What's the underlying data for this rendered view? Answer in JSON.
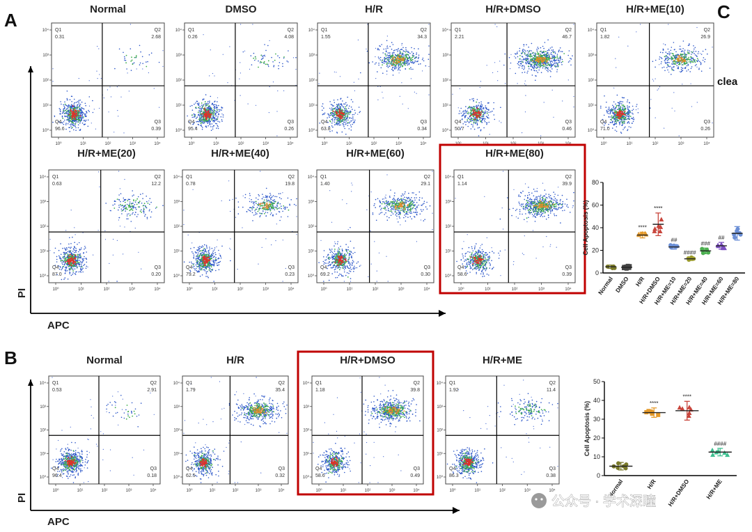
{
  "figure": {
    "panel_labels": [
      "A",
      "B",
      "C"
    ],
    "side_text": "clea",
    "axis_y_label": "PI",
    "axis_x_label": "APC",
    "watermark": "公众号 · 学术深瞳",
    "quadrant_labels": [
      "Q1",
      "Q2",
      "Q3",
      "Q4"
    ],
    "tick_labels": [
      "10⁰",
      "10¹",
      "10²",
      "10³",
      "10⁴"
    ],
    "colors": {
      "highlight_box": "#c00000",
      "gridline": "#000000",
      "dots": "#1f3fbf",
      "density_core": "#e0302a"
    }
  },
  "chart_data": [
    {
      "type": "scatter",
      "panel": "A",
      "title": "Normal",
      "quadrants": {
        "Q1": "0.31",
        "Q2": "2.68",
        "Q3": "0.39",
        "Q4": "96.6"
      },
      "highlighted": false
    },
    {
      "type": "scatter",
      "panel": "A",
      "title": "DMSO",
      "quadrants": {
        "Q1": "0.26",
        "Q2": "4.08",
        "Q3": "0.26",
        "Q4": "95.4"
      },
      "highlighted": false
    },
    {
      "type": "scatter",
      "panel": "A",
      "title": "H/R",
      "quadrants": {
        "Q1": "1.55",
        "Q2": "34.3",
        "Q3": "0.34",
        "Q4": "63.8"
      },
      "highlighted": false
    },
    {
      "type": "scatter",
      "panel": "A",
      "title": "H/R+DMSO",
      "quadrants": {
        "Q1": "2.21",
        "Q2": "46.7",
        "Q3": "0.46",
        "Q4": "50.7"
      },
      "highlighted": false
    },
    {
      "type": "scatter",
      "panel": "A",
      "title": "H/R+ME(10)",
      "quadrants": {
        "Q1": "1.82",
        "Q2": "26.9",
        "Q3": "0.26",
        "Q4": "71.0"
      },
      "highlighted": false
    },
    {
      "type": "scatter",
      "panel": "A",
      "title": "H/R+ME(20)",
      "quadrants": {
        "Q1": "0.63",
        "Q2": "12.2",
        "Q3": "0.20",
        "Q4": "87.0"
      },
      "highlighted": false
    },
    {
      "type": "scatter",
      "panel": "A",
      "title": "H/R+ME(40)",
      "quadrants": {
        "Q1": "0.78",
        "Q2": "19.8",
        "Q3": "0.23",
        "Q4": "79.2"
      },
      "highlighted": false
    },
    {
      "type": "scatter",
      "panel": "A",
      "title": "H/R+ME(60)",
      "quadrants": {
        "Q1": "1.40",
        "Q2": "29.1",
        "Q3": "0.30",
        "Q4": "69.2"
      },
      "highlighted": false
    },
    {
      "type": "scatter",
      "panel": "A",
      "title": "H/R+ME(80)",
      "quadrants": {
        "Q1": "1.14",
        "Q2": "39.9",
        "Q3": "0.39",
        "Q4": "58.6"
      },
      "highlighted": true
    },
    {
      "type": "scatter",
      "panel": "B",
      "title": "Normal",
      "quadrants": {
        "Q1": "0.53",
        "Q2": "2.91",
        "Q3": "0.18",
        "Q4": "96.4"
      },
      "highlighted": false
    },
    {
      "type": "scatter",
      "panel": "B",
      "title": "H/R",
      "quadrants": {
        "Q1": "1.79",
        "Q2": "35.4",
        "Q3": "0.32",
        "Q4": "62.5"
      },
      "highlighted": false
    },
    {
      "type": "scatter",
      "panel": "B",
      "title": "H/R+DMSO",
      "quadrants": {
        "Q1": "1.18",
        "Q2": "39.8",
        "Q3": "0.49",
        "Q4": "58.6"
      },
      "highlighted": true
    },
    {
      "type": "scatter",
      "panel": "B",
      "title": "H/R+ME",
      "quadrants": {
        "Q1": "1.92",
        "Q2": "11.4",
        "Q3": "0.38",
        "Q4": "86.3"
      },
      "highlighted": false
    },
    {
      "type": "scatter",
      "panel": "A-summary",
      "title": "",
      "ylabel": "Cell Apoptosis (%)",
      "ylim": [
        0,
        80
      ],
      "yticks": [
        "0",
        "20",
        "40",
        "60",
        "80"
      ],
      "categories": [
        "Normal",
        "DMSO",
        "H/R",
        "H/R+DMSO",
        "H/R+ME=10",
        "H/R+ME=20",
        "H/R+ME=40",
        "H/R+ME=60",
        "H/R+ME=80"
      ],
      "means": [
        5.5,
        5.0,
        33.5,
        43.0,
        23.0,
        12.5,
        19.5,
        24.0,
        35.0
      ],
      "errors": [
        1.5,
        2.0,
        2.5,
        10.0,
        2.0,
        1.5,
        2.5,
        3.0,
        6.0
      ],
      "annotations": [
        "",
        "",
        "****",
        "****",
        "##",
        "####",
        "###",
        "##",
        ""
      ],
      "colors": [
        "#7a7a2a",
        "#444444",
        "#e59a2a",
        "#c8453c",
        "#6b8fd6",
        "#9a9a2a",
        "#4caf50",
        "#7b4fc0",
        "#6b8fd6"
      ]
    },
    {
      "type": "scatter",
      "panel": "B-summary",
      "title": "",
      "ylabel": "Cell Apoptosis (%)",
      "ylim": [
        0,
        50
      ],
      "yticks": [
        "0",
        "10",
        "20",
        "30",
        "40",
        "50"
      ],
      "categories": [
        "Normal",
        "H/R",
        "H/R+DMSO",
        "H/R+ME"
      ],
      "means": [
        5.0,
        33.5,
        34.5,
        12.5
      ],
      "errors": [
        2.0,
        2.5,
        5.0,
        2.0
      ],
      "annotations": [
        "",
        "****",
        "****",
        "####"
      ],
      "colors": [
        "#7a7a2a",
        "#e59a2a",
        "#c8453c",
        "#3cbf8f"
      ]
    }
  ]
}
